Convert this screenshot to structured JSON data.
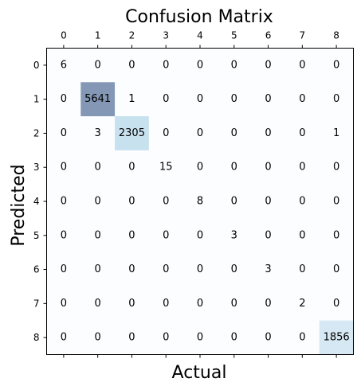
{
  "chart_data": {
    "type": "heatmap",
    "title": "Confusion Matrix",
    "xlabel": "Actual",
    "ylabel": "Predicted",
    "x_ticks": [
      "0",
      "1",
      "2",
      "3",
      "4",
      "5",
      "6",
      "7",
      "8"
    ],
    "y_ticks": [
      "0",
      "1",
      "2",
      "3",
      "4",
      "5",
      "6",
      "7",
      "8"
    ],
    "x_tick_position": "top",
    "colormap": "Blues",
    "cell_alpha": 0.5,
    "matrix": [
      [
        6,
        0,
        0,
        0,
        0,
        0,
        0,
        0,
        0
      ],
      [
        0,
        5641,
        1,
        0,
        0,
        0,
        0,
        0,
        0
      ],
      [
        0,
        3,
        2305,
        0,
        0,
        0,
        0,
        0,
        1
      ],
      [
        0,
        0,
        0,
        15,
        0,
        0,
        0,
        0,
        0
      ],
      [
        0,
        0,
        0,
        0,
        8,
        0,
        0,
        0,
        0
      ],
      [
        0,
        0,
        0,
        0,
        0,
        3,
        0,
        0,
        0
      ],
      [
        0,
        0,
        0,
        0,
        0,
        0,
        3,
        0,
        0
      ],
      [
        0,
        0,
        0,
        0,
        0,
        0,
        0,
        2,
        0
      ],
      [
        0,
        0,
        0,
        0,
        0,
        0,
        0,
        0,
        1856
      ]
    ]
  }
}
